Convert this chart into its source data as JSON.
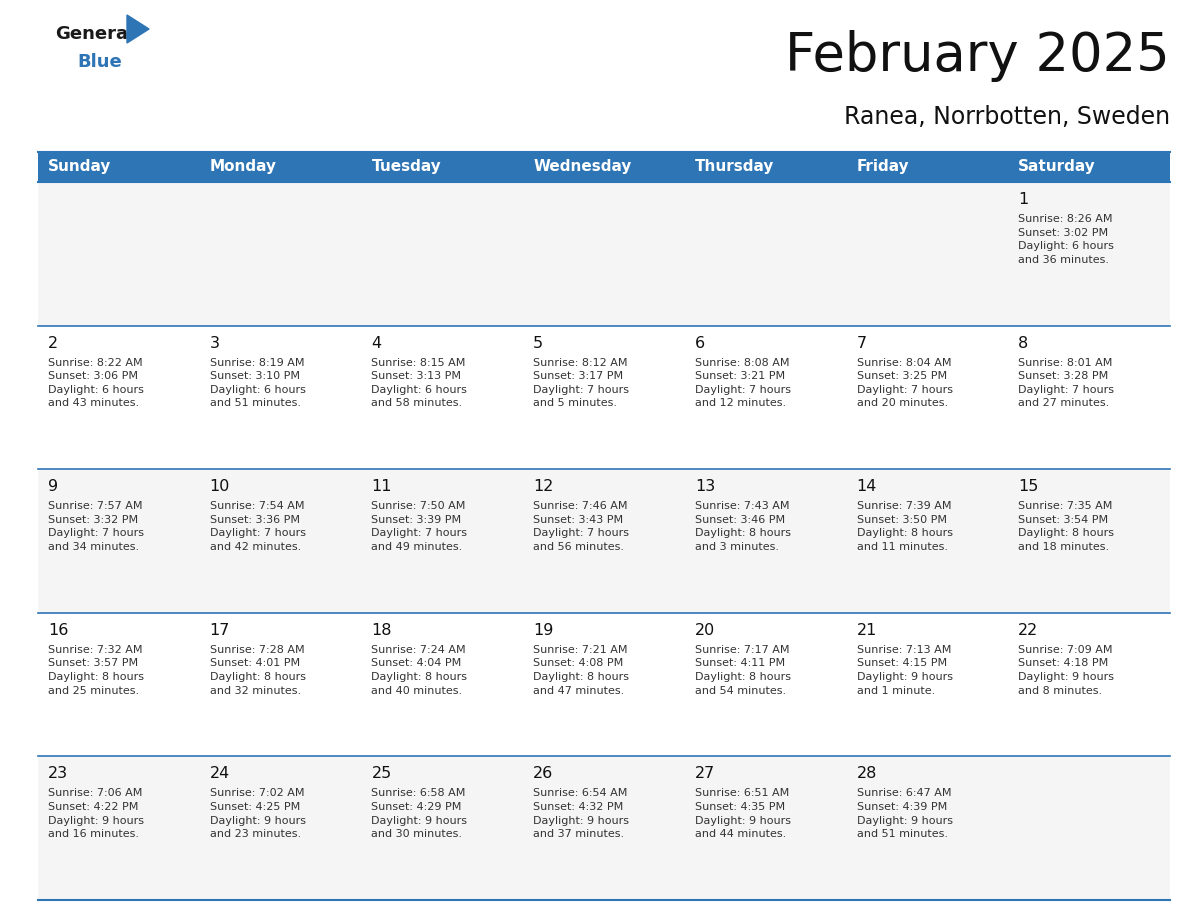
{
  "title": "February 2025",
  "subtitle": "Ranea, Norrbotten, Sweden",
  "header_color": "#2E75B6",
  "header_text_color": "#FFFFFF",
  "cell_bg_color": "#EFEFEF",
  "day_names": [
    "Sunday",
    "Monday",
    "Tuesday",
    "Wednesday",
    "Thursday",
    "Friday",
    "Saturday"
  ],
  "days": [
    {
      "day": 1,
      "col": 6,
      "row": 0,
      "sunrise": "8:26 AM",
      "sunset": "3:02 PM",
      "daylight": "6 hours\nand 36 minutes."
    },
    {
      "day": 2,
      "col": 0,
      "row": 1,
      "sunrise": "8:22 AM",
      "sunset": "3:06 PM",
      "daylight": "6 hours\nand 43 minutes."
    },
    {
      "day": 3,
      "col": 1,
      "row": 1,
      "sunrise": "8:19 AM",
      "sunset": "3:10 PM",
      "daylight": "6 hours\nand 51 minutes."
    },
    {
      "day": 4,
      "col": 2,
      "row": 1,
      "sunrise": "8:15 AM",
      "sunset": "3:13 PM",
      "daylight": "6 hours\nand 58 minutes."
    },
    {
      "day": 5,
      "col": 3,
      "row": 1,
      "sunrise": "8:12 AM",
      "sunset": "3:17 PM",
      "daylight": "7 hours\nand 5 minutes."
    },
    {
      "day": 6,
      "col": 4,
      "row": 1,
      "sunrise": "8:08 AM",
      "sunset": "3:21 PM",
      "daylight": "7 hours\nand 12 minutes."
    },
    {
      "day": 7,
      "col": 5,
      "row": 1,
      "sunrise": "8:04 AM",
      "sunset": "3:25 PM",
      "daylight": "7 hours\nand 20 minutes."
    },
    {
      "day": 8,
      "col": 6,
      "row": 1,
      "sunrise": "8:01 AM",
      "sunset": "3:28 PM",
      "daylight": "7 hours\nand 27 minutes."
    },
    {
      "day": 9,
      "col": 0,
      "row": 2,
      "sunrise": "7:57 AM",
      "sunset": "3:32 PM",
      "daylight": "7 hours\nand 34 minutes."
    },
    {
      "day": 10,
      "col": 1,
      "row": 2,
      "sunrise": "7:54 AM",
      "sunset": "3:36 PM",
      "daylight": "7 hours\nand 42 minutes."
    },
    {
      "day": 11,
      "col": 2,
      "row": 2,
      "sunrise": "7:50 AM",
      "sunset": "3:39 PM",
      "daylight": "7 hours\nand 49 minutes."
    },
    {
      "day": 12,
      "col": 3,
      "row": 2,
      "sunrise": "7:46 AM",
      "sunset": "3:43 PM",
      "daylight": "7 hours\nand 56 minutes."
    },
    {
      "day": 13,
      "col": 4,
      "row": 2,
      "sunrise": "7:43 AM",
      "sunset": "3:46 PM",
      "daylight": "8 hours\nand 3 minutes."
    },
    {
      "day": 14,
      "col": 5,
      "row": 2,
      "sunrise": "7:39 AM",
      "sunset": "3:50 PM",
      "daylight": "8 hours\nand 11 minutes."
    },
    {
      "day": 15,
      "col": 6,
      "row": 2,
      "sunrise": "7:35 AM",
      "sunset": "3:54 PM",
      "daylight": "8 hours\nand 18 minutes."
    },
    {
      "day": 16,
      "col": 0,
      "row": 3,
      "sunrise": "7:32 AM",
      "sunset": "3:57 PM",
      "daylight": "8 hours\nand 25 minutes."
    },
    {
      "day": 17,
      "col": 1,
      "row": 3,
      "sunrise": "7:28 AM",
      "sunset": "4:01 PM",
      "daylight": "8 hours\nand 32 minutes."
    },
    {
      "day": 18,
      "col": 2,
      "row": 3,
      "sunrise": "7:24 AM",
      "sunset": "4:04 PM",
      "daylight": "8 hours\nand 40 minutes."
    },
    {
      "day": 19,
      "col": 3,
      "row": 3,
      "sunrise": "7:21 AM",
      "sunset": "4:08 PM",
      "daylight": "8 hours\nand 47 minutes."
    },
    {
      "day": 20,
      "col": 4,
      "row": 3,
      "sunrise": "7:17 AM",
      "sunset": "4:11 PM",
      "daylight": "8 hours\nand 54 minutes."
    },
    {
      "day": 21,
      "col": 5,
      "row": 3,
      "sunrise": "7:13 AM",
      "sunset": "4:15 PM",
      "daylight": "9 hours\nand 1 minute."
    },
    {
      "day": 22,
      "col": 6,
      "row": 3,
      "sunrise": "7:09 AM",
      "sunset": "4:18 PM",
      "daylight": "9 hours\nand 8 minutes."
    },
    {
      "day": 23,
      "col": 0,
      "row": 4,
      "sunrise": "7:06 AM",
      "sunset": "4:22 PM",
      "daylight": "9 hours\nand 16 minutes."
    },
    {
      "day": 24,
      "col": 1,
      "row": 4,
      "sunrise": "7:02 AM",
      "sunset": "4:25 PM",
      "daylight": "9 hours\nand 23 minutes."
    },
    {
      "day": 25,
      "col": 2,
      "row": 4,
      "sunrise": "6:58 AM",
      "sunset": "4:29 PM",
      "daylight": "9 hours\nand 30 minutes."
    },
    {
      "day": 26,
      "col": 3,
      "row": 4,
      "sunrise": "6:54 AM",
      "sunset": "4:32 PM",
      "daylight": "9 hours\nand 37 minutes."
    },
    {
      "day": 27,
      "col": 4,
      "row": 4,
      "sunrise": "6:51 AM",
      "sunset": "4:35 PM",
      "daylight": "9 hours\nand 44 minutes."
    },
    {
      "day": 28,
      "col": 5,
      "row": 4,
      "sunrise": "6:47 AM",
      "sunset": "4:39 PM",
      "daylight": "9 hours\nand 51 minutes."
    }
  ],
  "logo_blue_color": "#2E75B6",
  "logo_black_color": "#1a1a1a",
  "line_color": "#2E75B6",
  "divider_color": "#2E75B6",
  "num_rows": 5,
  "num_cols": 7,
  "figwidth": 11.88,
  "figheight": 9.18,
  "dpi": 100
}
